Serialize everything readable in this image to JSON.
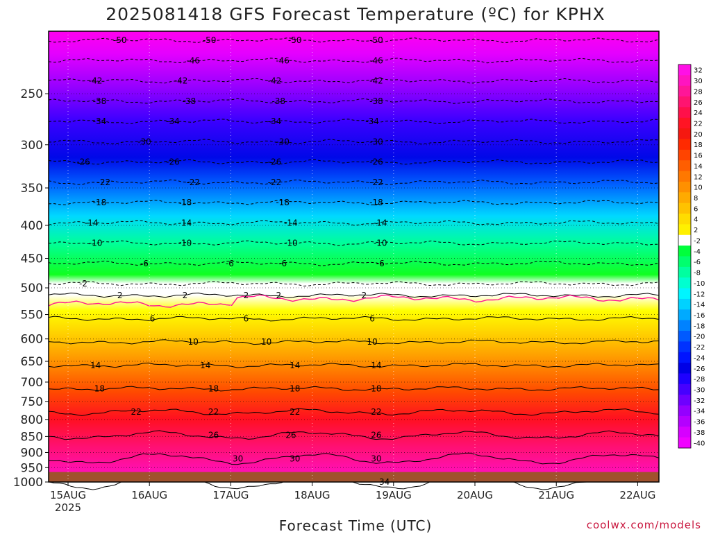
{
  "chart_data": {
    "type": "heatmap",
    "title": "2025081418 GFS Forecast Temperature (ºC) for KPHX",
    "xlabel": "Forecast Time (UTC)",
    "x_ticks": [
      "15AUG",
      "16AUG",
      "17AUG",
      "18AUG",
      "19AUG",
      "20AUG",
      "21AUG",
      "22AUG"
    ],
    "x_tick_sublabel": "2025",
    "y_ticks": [
      250,
      300,
      350,
      400,
      450,
      500,
      550,
      600,
      650,
      700,
      750,
      800,
      850,
      900,
      950,
      1000
    ],
    "ylim": [
      1000,
      200
    ],
    "y_scale": "log-pressure",
    "colorbar": {
      "labels": [
        32,
        30,
        28,
        26,
        24,
        22,
        20,
        18,
        16,
        14,
        12,
        10,
        8,
        6,
        4,
        2,
        -2,
        -4,
        -6,
        -8,
        -10,
        -12,
        -14,
        -16,
        -18,
        -20,
        -22,
        -24,
        -26,
        -28,
        -30,
        -32,
        -34,
        -36,
        -38,
        -40
      ],
      "colors": [
        "#ff10e6",
        "#ff14c0",
        "#ff1698",
        "#ff1470",
        "#ff104a",
        "#ff1424",
        "#f51810",
        "#ff2a00",
        "#ff4400",
        "#ff5e00",
        "#ff7800",
        "#ff9000",
        "#ffaa00",
        "#ffc200",
        "#ffdc00",
        "#fff000",
        "#ffffff",
        "#00ff3c",
        "#00ff6e",
        "#00ffa0",
        "#00ffd0",
        "#00f5ff",
        "#00d2ff",
        "#00aaff",
        "#0082ff",
        "#005aff",
        "#0032ff",
        "#0014ff",
        "#0000e6",
        "#1e00ff",
        "#4600ff",
        "#6e00ff",
        "#9400ff",
        "#b400ff",
        "#d600ff",
        "#f000ff"
      ]
    },
    "contour_labels": [
      {
        "level": -50,
        "x": [
          0.45,
          1.55,
          2.6,
          3.6
        ]
      },
      {
        "level": -46,
        "x": [
          1.35,
          2.45,
          3.6
        ]
      },
      {
        "level": -42,
        "x": [
          0.15,
          1.2,
          2.35,
          3.6
        ]
      },
      {
        "level": -38,
        "x": [
          0.2,
          1.3,
          2.4,
          3.6
        ]
      },
      {
        "level": -34,
        "x": [
          0.2,
          1.1,
          2.35,
          3.55
        ]
      },
      {
        "level": -30,
        "x": [
          0.75,
          2.45,
          3.6
        ]
      },
      {
        "level": -26,
        "x": [
          0.0,
          1.1,
          2.35,
          3.6
        ]
      },
      {
        "level": -22,
        "x": [
          0.25,
          1.35,
          2.35,
          3.6
        ]
      },
      {
        "level": -18,
        "x": [
          0.2,
          1.25,
          2.45,
          3.6
        ]
      },
      {
        "level": -14,
        "x": [
          0.1,
          1.25,
          2.55,
          3.65
        ]
      },
      {
        "level": -10,
        "x": [
          0.15,
          1.25,
          2.55,
          3.65
        ]
      },
      {
        "level": -6,
        "x": [
          0.75,
          1.8,
          2.45,
          3.65
        ]
      },
      {
        "level": -2,
        "x": [
          0.0
        ]
      },
      {
        "level": 2,
        "x": [
          0.45,
          1.25,
          2.0,
          2.4,
          3.45
        ]
      },
      {
        "level": 6,
        "x": [
          0.85,
          2.0,
          3.55
        ]
      },
      {
        "level": 10,
        "x": [
          1.35,
          2.25,
          3.55
        ]
      },
      {
        "level": 14,
        "x": [
          0.15,
          1.5,
          2.6,
          3.6
        ]
      },
      {
        "level": 18,
        "x": [
          0.2,
          1.6,
          2.6,
          3.6
        ]
      },
      {
        "level": 22,
        "x": [
          0.65,
          1.6,
          2.6,
          3.6
        ]
      },
      {
        "level": 26,
        "x": [
          1.6,
          2.55,
          3.6
        ]
      },
      {
        "level": 30,
        "x": [
          1.9,
          2.6,
          3.6
        ]
      },
      {
        "level": 34,
        "x": [
          3.7
        ]
      }
    ],
    "terrain_below_hPa": 965,
    "credit": "coolwx.com/models"
  }
}
